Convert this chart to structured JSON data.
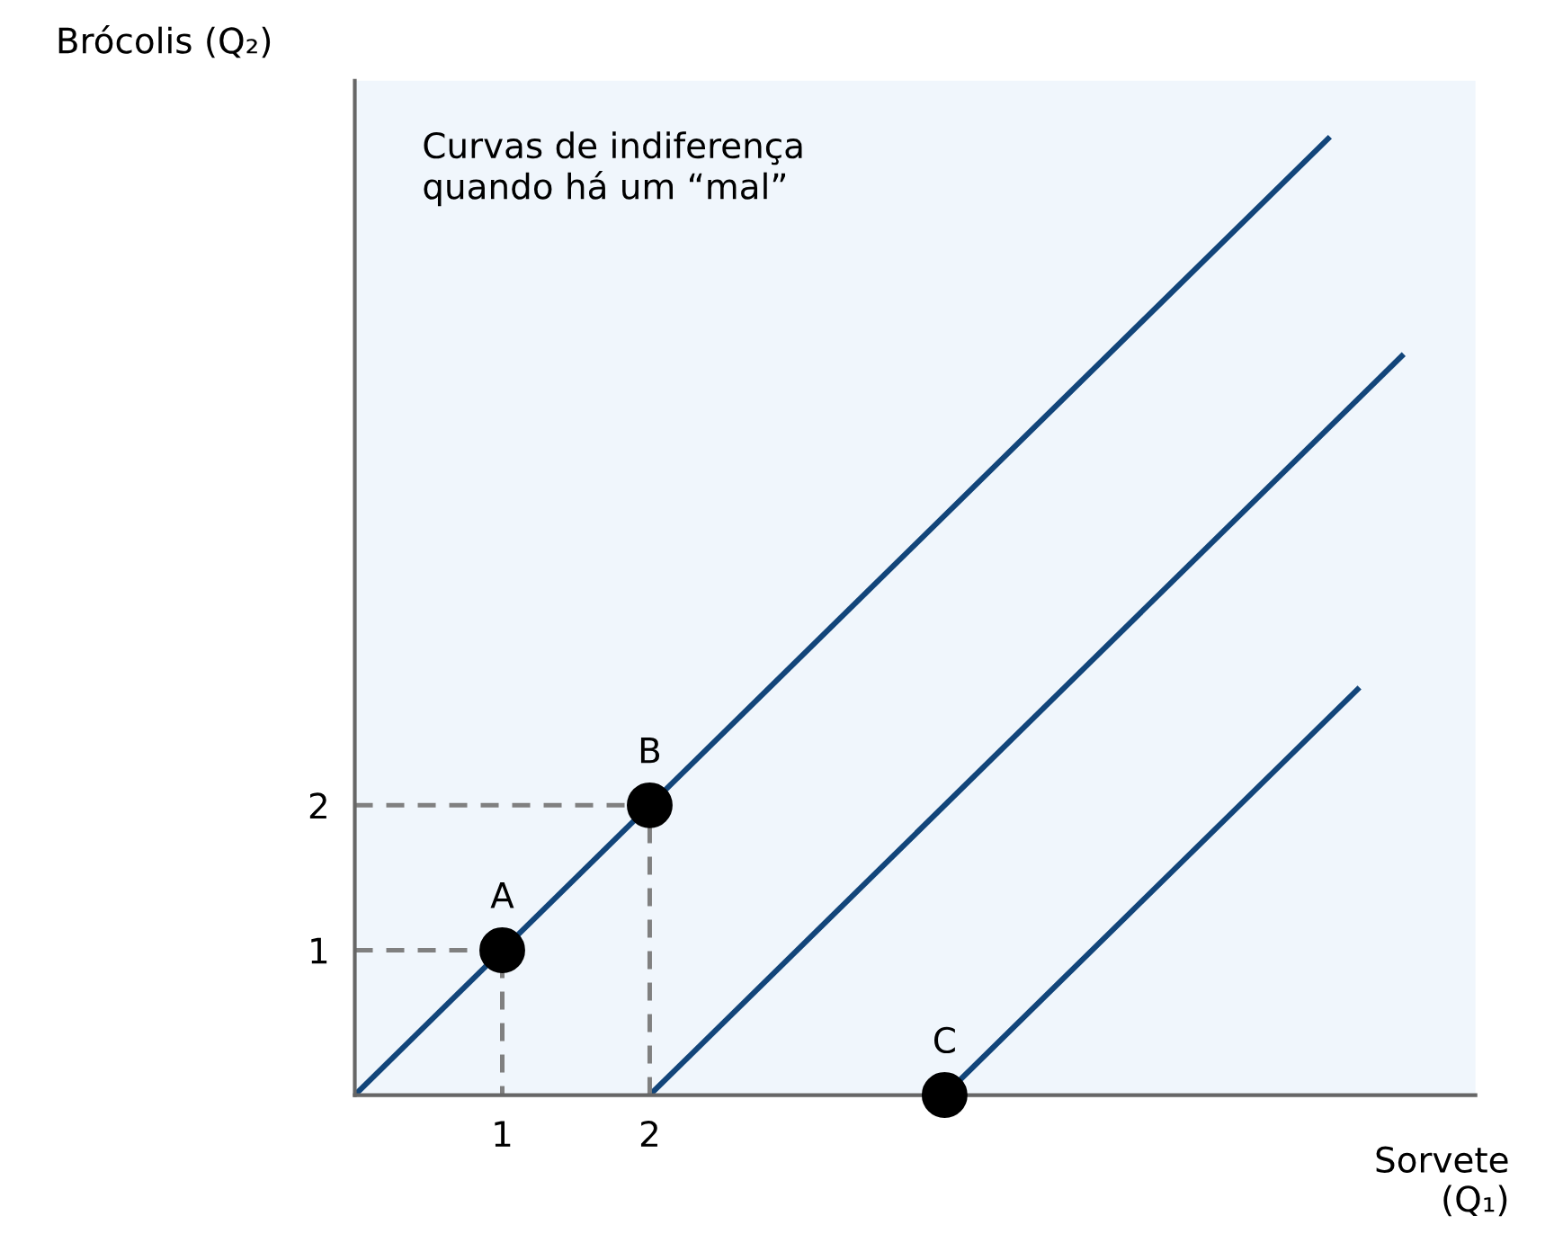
{
  "chart_data": {
    "type": "line",
    "xlabel": "Sorvete\n(Q₁)",
    "ylabel": "Brócolis (Q₂)",
    "annotations": [
      "Curvas de indiferença\nquando há um “mal”",
      {
        "text": "A",
        "x": 1,
        "y": 1
      },
      {
        "text": "B",
        "x": 2,
        "y": 2
      },
      {
        "text": "C",
        "x": 4,
        "y": 0
      }
    ],
    "xlim": [
      0,
      7.6
    ],
    "ylim": [
      0,
      7.0
    ],
    "xticks": [
      1,
      2
    ],
    "yticks": [
      1,
      2
    ],
    "grid": false,
    "legend": false,
    "series": [
      {
        "color": "#12457a",
        "x": [
          0,
          6.6
        ],
        "values": [
          0,
          6.6
        ],
        "line_style": "solid",
        "marker": "none"
      },
      {
        "color": "#12457a",
        "x": [
          2,
          7.1
        ],
        "values": [
          0,
          5.1
        ],
        "line_style": "solid",
        "marker": "none"
      },
      {
        "color": "#12457a",
        "x": [
          4,
          6.8
        ],
        "values": [
          0,
          2.8
        ],
        "line_style": "solid",
        "marker": "none"
      },
      {
        "color": "#808080",
        "x": [
          0,
          1,
          1
        ],
        "values": [
          1,
          1,
          0
        ],
        "line_style": "dashed",
        "marker": "none"
      },
      {
        "color": "#808080",
        "x": [
          0,
          2,
          2
        ],
        "values": [
          2,
          2,
          0
        ],
        "line_style": "dashed",
        "marker": "none"
      },
      {
        "type": "scatter",
        "color": "#000000",
        "x": [
          1,
          2,
          4
        ],
        "values": [
          1,
          2,
          0
        ],
        "marker": "circle"
      }
    ]
  }
}
